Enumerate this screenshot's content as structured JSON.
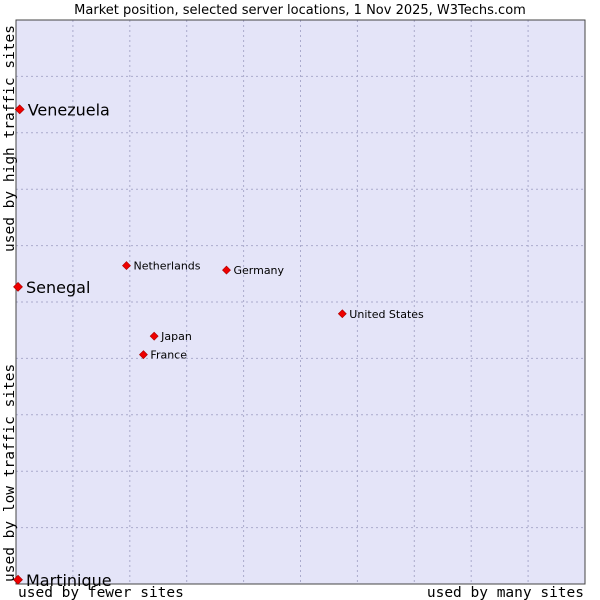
{
  "chart_data": {
    "type": "scatter",
    "title": "Market position, selected server locations, 1 Nov 2025, W3Techs.com",
    "xlabel_left": "used by fewer sites",
    "xlabel_right": "used by many sites",
    "ylabel_top": "used by high traffic sites",
    "ylabel_bottom": "used by low traffic sites",
    "xlim": [
      0,
      100
    ],
    "ylim": [
      0,
      100
    ],
    "grid": true,
    "colors": {
      "plot_background": "#e4e4f8",
      "grid": "#aaaacc",
      "border": "#444444",
      "point": "#ee0000"
    },
    "points": [
      {
        "name": "Venezuela",
        "x": 0.3,
        "y": 84.4,
        "size": "large"
      },
      {
        "name": "Senegal",
        "x": 0.0,
        "y": 52.7,
        "size": "large"
      },
      {
        "name": "Netherlands",
        "x": 19.2,
        "y": 56.5,
        "size": "small"
      },
      {
        "name": "Germany",
        "x": 36.9,
        "y": 55.7,
        "size": "small"
      },
      {
        "name": "United States",
        "x": 57.4,
        "y": 47.9,
        "size": "small"
      },
      {
        "name": "Japan",
        "x": 24.1,
        "y": 43.9,
        "size": "small"
      },
      {
        "name": "France",
        "x": 22.2,
        "y": 40.6,
        "size": "small"
      },
      {
        "name": "Martinique",
        "x": 0.0,
        "y": 0.4,
        "size": "large"
      }
    ]
  }
}
